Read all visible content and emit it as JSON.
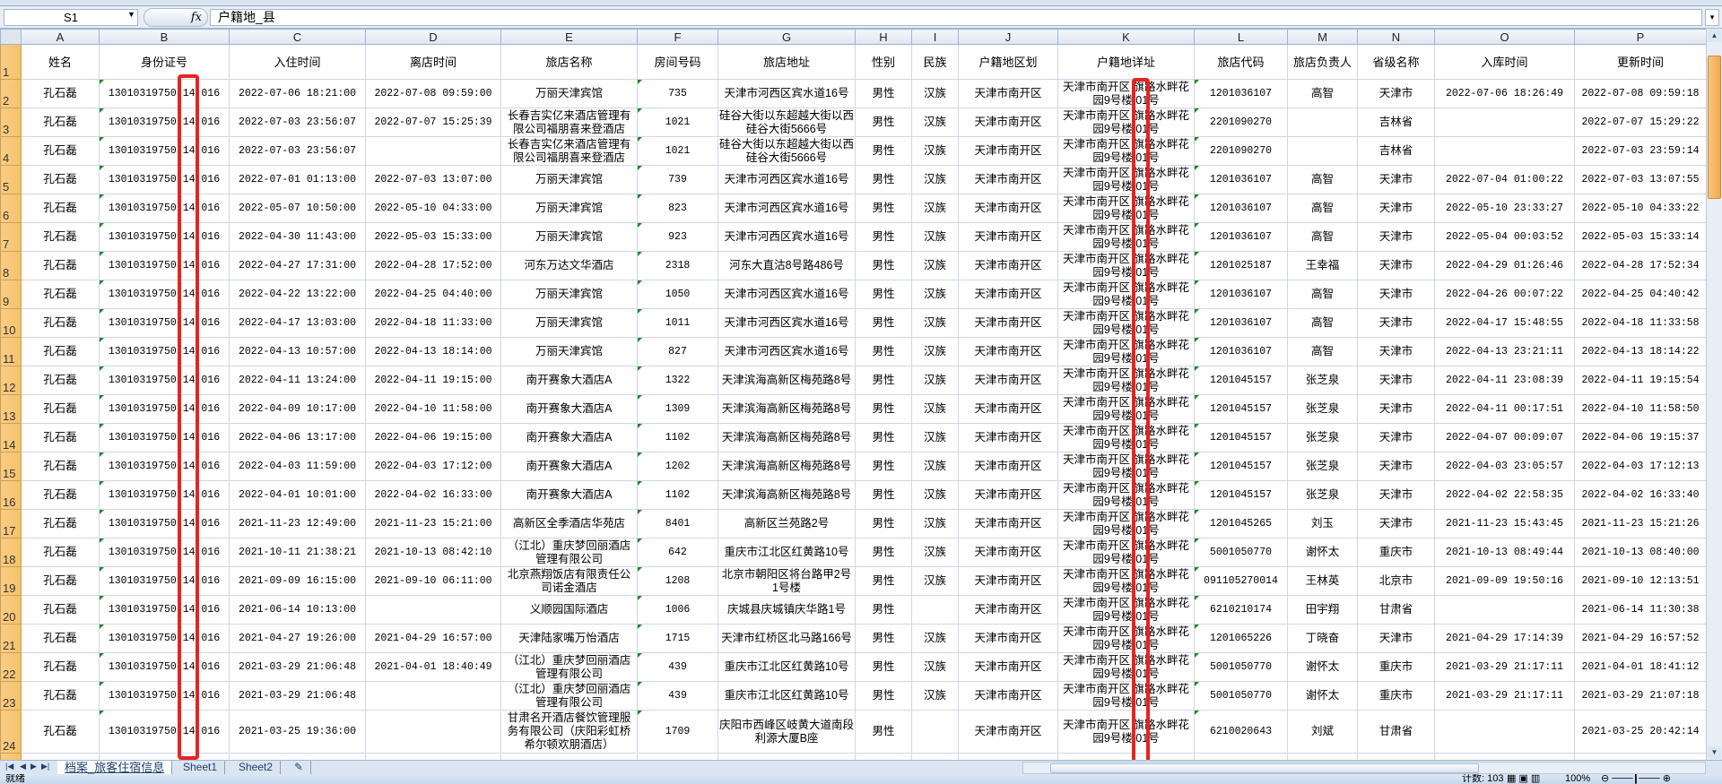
{
  "formula_bar": {
    "name_box": "S1",
    "fx_label": "fx",
    "formula": "户籍地_县"
  },
  "column_letters": [
    "A",
    "B",
    "C",
    "D",
    "E",
    "F",
    "G",
    "H",
    "I",
    "J",
    "K",
    "L",
    "M",
    "N",
    "O",
    "P"
  ],
  "headers": [
    "姓名",
    "身份证号",
    "入住时间",
    "离店时间",
    "旅店名称",
    "房间号码",
    "旅店地址",
    "性别",
    "民族",
    "户籍地区划",
    "户籍地详址",
    "旅店代码",
    "旅店负责人",
    "省级名称",
    "入库时间",
    "更新时间"
  ],
  "row_numbers": [
    "1",
    "2",
    "3",
    "4",
    "5",
    "6",
    "7",
    "8",
    "9",
    "10",
    "11",
    "12",
    "13",
    "14",
    "15",
    "16",
    "17",
    "18",
    "19",
    "20",
    "21",
    "22",
    "23",
    "24"
  ],
  "rows": [
    [
      "孔石磊",
      "13010319750 14 016",
      "2022-07-06 18:21:00",
      "2022-07-08 09:59:00",
      "万丽天津宾馆",
      "735",
      "天津市河西区宾水道16号",
      "男性",
      "汉族",
      "天津市南开区",
      "天津市南开区 旗路水畔花园9号楼 01号",
      "1201036107",
      "高智",
      "天津市",
      "2022-07-06 18:26:49",
      "2022-07-08 09:59:18"
    ],
    [
      "孔石磊",
      "13010319750 14 016",
      "2022-07-03 23:56:07",
      "2022-07-07 15:25:39",
      "长春吉实亿来酒店管理有限公司福朋喜来登酒店",
      "1021",
      "硅谷大街以东超越大街以西硅谷大街5666号",
      "男性",
      "汉族",
      "天津市南开区",
      "天津市南开区 旗路水畔花园9号楼 01号",
      "2201090270",
      "",
      "吉林省",
      "",
      "2022-07-07 15:29:22"
    ],
    [
      "孔石磊",
      "13010319750 14 016",
      "2022-07-03 23:56:07",
      "",
      "长春吉实亿来酒店管理有限公司福朋喜来登酒店",
      "1021",
      "硅谷大街以东超越大街以西硅谷大街5666号",
      "男性",
      "汉族",
      "天津市南开区",
      "天津市南开区 旗路水畔花园9号楼 01号",
      "2201090270",
      "",
      "吉林省",
      "",
      "2022-07-03 23:59:14"
    ],
    [
      "孔石磊",
      "13010319750 14 016",
      "2022-07-01 01:13:00",
      "2022-07-03 13:07:00",
      "万丽天津宾馆",
      "739",
      "天津市河西区宾水道16号",
      "男性",
      "汉族",
      "天津市南开区",
      "天津市南开区 旗路水畔花园9号楼 01号",
      "1201036107",
      "高智",
      "天津市",
      "2022-07-04 01:00:22",
      "2022-07-03 13:07:55"
    ],
    [
      "孔石磊",
      "13010319750 14 016",
      "2022-05-07 10:50:00",
      "2022-05-10 04:33:00",
      "万丽天津宾馆",
      "823",
      "天津市河西区宾水道16号",
      "男性",
      "汉族",
      "天津市南开区",
      "天津市南开区 旗路水畔花园9号楼 01号",
      "1201036107",
      "高智",
      "天津市",
      "2022-05-10 23:33:27",
      "2022-05-10 04:33:22"
    ],
    [
      "孔石磊",
      "13010319750 14 016",
      "2022-04-30 11:43:00",
      "2022-05-03 15:33:00",
      "万丽天津宾馆",
      "923",
      "天津市河西区宾水道16号",
      "男性",
      "汉族",
      "天津市南开区",
      "天津市南开区 旗路水畔花园9号楼 01号",
      "1201036107",
      "高智",
      "天津市",
      "2022-05-04 00:03:52",
      "2022-05-03 15:33:14"
    ],
    [
      "孔石磊",
      "13010319750 14 016",
      "2022-04-27 17:31:00",
      "2022-04-28 17:52:00",
      "河东万达文华酒店",
      "2318",
      "河东大直沽8号路486号",
      "男性",
      "汉族",
      "天津市南开区",
      "天津市南开区 旗路水畔花园9号楼 01号",
      "1201025187",
      "王幸福",
      "天津市",
      "2022-04-29 01:26:46",
      "2022-04-28 17:52:34"
    ],
    [
      "孔石磊",
      "13010319750 14 016",
      "2022-04-22 13:22:00",
      "2022-04-25 04:40:00",
      "万丽天津宾馆",
      "1050",
      "天津市河西区宾水道16号",
      "男性",
      "汉族",
      "天津市南开区",
      "天津市南开区 旗路水畔花园9号楼 01号",
      "1201036107",
      "高智",
      "天津市",
      "2022-04-26 00:07:22",
      "2022-04-25 04:40:42"
    ],
    [
      "孔石磊",
      "13010319750 14 016",
      "2022-04-17 13:03:00",
      "2022-04-18 11:33:00",
      "万丽天津宾馆",
      "1011",
      "天津市河西区宾水道16号",
      "男性",
      "汉族",
      "天津市南开区",
      "天津市南开区 旗路水畔花园9号楼 01号",
      "1201036107",
      "高智",
      "天津市",
      "2022-04-17 15:48:55",
      "2022-04-18 11:33:58"
    ],
    [
      "孔石磊",
      "13010319750 14 016",
      "2022-04-13 10:57:00",
      "2022-04-13 18:14:00",
      "万丽天津宾馆",
      "827",
      "天津市河西区宾水道16号",
      "男性",
      "汉族",
      "天津市南开区",
      "天津市南开区 旗路水畔花园9号楼 01号",
      "1201036107",
      "高智",
      "天津市",
      "2022-04-13 23:21:11",
      "2022-04-13 18:14:22"
    ],
    [
      "孔石磊",
      "13010319750 14 016",
      "2022-04-11 13:24:00",
      "2022-04-11 19:15:00",
      "南开赛象大酒店A",
      "1322",
      "天津滨海高新区梅苑路8号",
      "男性",
      "汉族",
      "天津市南开区",
      "天津市南开区 旗路水畔花园9号楼 01号",
      "1201045157",
      "张芝泉",
      "天津市",
      "2022-04-11 23:08:39",
      "2022-04-11 19:15:54"
    ],
    [
      "孔石磊",
      "13010319750 14 016",
      "2022-04-09 10:17:00",
      "2022-04-10 11:58:00",
      "南开赛象大酒店A",
      "1309",
      "天津滨海高新区梅苑路8号",
      "男性",
      "汉族",
      "天津市南开区",
      "天津市南开区 旗路水畔花园9号楼 01号",
      "1201045157",
      "张芝泉",
      "天津市",
      "2022-04-11 00:17:51",
      "2022-04-10 11:58:50"
    ],
    [
      "孔石磊",
      "13010319750 14 016",
      "2022-04-06 13:17:00",
      "2022-04-06 19:15:00",
      "南开赛象大酒店A",
      "1102",
      "天津滨海高新区梅苑路8号",
      "男性",
      "汉族",
      "天津市南开区",
      "天津市南开区 旗路水畔花园9号楼 01号",
      "1201045157",
      "张芝泉",
      "天津市",
      "2022-04-07 00:09:07",
      "2022-04-06 19:15:37"
    ],
    [
      "孔石磊",
      "13010319750 14 016",
      "2022-04-03 11:59:00",
      "2022-04-03 17:12:00",
      "南开赛象大酒店A",
      "1202",
      "天津滨海高新区梅苑路8号",
      "男性",
      "汉族",
      "天津市南开区",
      "天津市南开区 旗路水畔花园9号楼 01号",
      "1201045157",
      "张芝泉",
      "天津市",
      "2022-04-03 23:05:57",
      "2022-04-03 17:12:13"
    ],
    [
      "孔石磊",
      "13010319750 14 016",
      "2022-04-01 10:01:00",
      "2022-04-02 16:33:00",
      "南开赛象大酒店A",
      "1102",
      "天津滨海高新区梅苑路8号",
      "男性",
      "汉族",
      "天津市南开区",
      "天津市南开区 旗路水畔花园9号楼 01号",
      "1201045157",
      "张芝泉",
      "天津市",
      "2022-04-02 22:58:35",
      "2022-04-02 16:33:40"
    ],
    [
      "孔石磊",
      "13010319750 14 016",
      "2021-11-23 12:49:00",
      "2021-11-23 15:21:00",
      "高新区全季酒店华苑店",
      "8401",
      "高新区兰苑路2号",
      "男性",
      "汉族",
      "天津市南开区",
      "天津市南开区 旗路水畔花园9号楼 01号",
      "1201045265",
      "刘玉",
      "天津市",
      "2021-11-23 15:43:45",
      "2021-11-23 15:21:26"
    ],
    [
      "孔石磊",
      "13010319750 14 016",
      "2021-10-11 21:38:21",
      "2021-10-13 08:42:10",
      "（江北）重庆梦回丽酒店管理有限公司",
      "642",
      "重庆市江北区红黄路10号",
      "男性",
      "汉族",
      "天津市南开区",
      "天津市南开区 旗路水畔花园9号楼 01号",
      "5001050770",
      "谢怀太",
      "重庆市",
      "2021-10-13 08:49:44",
      "2021-10-13 08:40:00"
    ],
    [
      "孔石磊",
      "13010319750 14 016",
      "2021-09-09 16:15:00",
      "2021-09-10 06:11:00",
      "北京燕翔饭店有限责任公司诺金酒店",
      "1208",
      "北京市朝阳区将台路甲2号1号楼",
      "男性",
      "汉族",
      "天津市南开区",
      "天津市南开区 旗路水畔花园9号楼 01号",
      "091105270014",
      "王林英",
      "北京市",
      "2021-09-09 19:50:16",
      "2021-09-10 12:13:51"
    ],
    [
      "孔石磊",
      "13010319750 14 016",
      "2021-06-14 10:13:00",
      "",
      "义顺园国际酒店",
      "1006",
      "庆城县庆城镇庆华路1号",
      "男性",
      "",
      "天津市南开区",
      "天津市南开区 旗路水畔花园9号楼 01号",
      "6210210174",
      "田宇翔",
      "甘肃省",
      "",
      "2021-06-14 11:30:38"
    ],
    [
      "孔石磊",
      "13010319750 14 016",
      "2021-04-27 19:26:00",
      "2021-04-29 16:57:00",
      "天津陆家嘴万怡酒店",
      "1715",
      "天津市红桥区北马路166号",
      "男性",
      "汉族",
      "天津市南开区",
      "天津市南开区 旗路水畔花园9号楼 01号",
      "1201065226",
      "丁晓奋",
      "天津市",
      "2021-04-29 17:14:39",
      "2021-04-29 16:57:52"
    ],
    [
      "孔石磊",
      "13010319750 14 016",
      "2021-03-29 21:06:48",
      "2021-04-01 18:40:49",
      "（江北）重庆梦回丽酒店管理有限公司",
      "439",
      "重庆市江北区红黄路10号",
      "男性",
      "汉族",
      "天津市南开区",
      "天津市南开区 旗路水畔花园9号楼 01号",
      "5001050770",
      "谢怀太",
      "重庆市",
      "2021-03-29 21:17:11",
      "2021-04-01 18:41:12"
    ],
    [
      "孔石磊",
      "13010319750 14 016",
      "2021-03-29 21:06:48",
      "",
      "（江北）重庆梦回丽酒店管理有限公司",
      "439",
      "重庆市江北区红黄路10号",
      "男性",
      "汉族",
      "天津市南开区",
      "天津市南开区 旗路水畔花园9号楼 01号",
      "5001050770",
      "谢怀太",
      "重庆市",
      "2021-03-29 21:17:11",
      "2021-03-29 21:07:18"
    ],
    [
      "孔石磊",
      "13010319750 14 016",
      "2021-03-25 19:36:00",
      "",
      "甘肃名开酒店餐饮管理服务有限公司（庆阳彩虹桥希尔顿欢朋酒店）",
      "1709",
      "庆阳市西峰区岐黄大道南段利源大厦B座",
      "男性",
      "",
      "天津市南开区",
      "天津市南开区 旗路水畔花园9号楼 01号",
      "6210020643",
      "刘斌",
      "甘肃省",
      "",
      "2021-03-25 20:42:14"
    ]
  ],
  "sheet_tabs": [
    "档案_旅客住宿信息",
    "Sheet1",
    "Sheet2"
  ],
  "active_tab": "档案_旅客住宿信息",
  "status_bar": {
    "ready": "就绪",
    "count": "计数: 103",
    "zoom": "100%"
  },
  "colors": {
    "highlight_box": "#e8231e",
    "row_header": "#f6c16a",
    "accent": "#dbe5f1"
  }
}
